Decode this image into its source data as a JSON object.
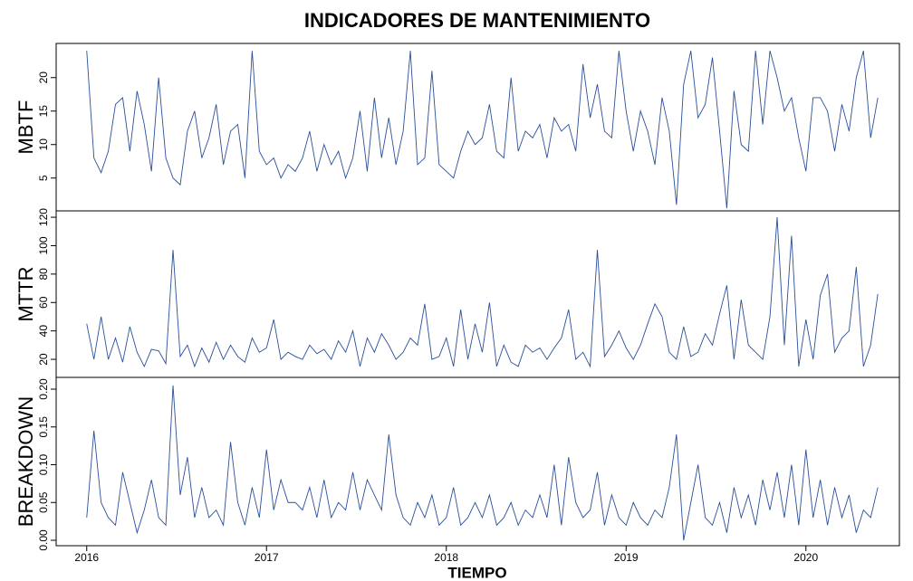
{
  "chart_data": {
    "type": "line",
    "title": "INDICADORES DE MANTENIMIENTO",
    "xlabel": "TIEMPO",
    "color": "#2a4f9a",
    "xlim": [
      2015.83,
      2020.52
    ],
    "xticks": [
      2016,
      2017,
      2018,
      2019,
      2020
    ],
    "x": [
      2016,
      2016.04,
      2016.08,
      2016.12,
      2016.16,
      2016.2,
      2016.24,
      2016.28,
      2016.32,
      2016.36,
      2016.4,
      2016.44,
      2016.48,
      2016.52,
      2016.56,
      2016.6,
      2016.64,
      2016.68,
      2016.72,
      2016.76,
      2016.8,
      2016.84,
      2016.88,
      2016.92,
      2016.96,
      2017,
      2017.04,
      2017.08,
      2017.12,
      2017.16,
      2017.2,
      2017.24,
      2017.28,
      2017.32,
      2017.36,
      2017.4,
      2017.44,
      2017.48,
      2017.52,
      2017.56,
      2017.6,
      2017.64,
      2017.68,
      2017.72,
      2017.76,
      2017.8,
      2017.84,
      2017.88,
      2017.92,
      2017.96,
      2018,
      2018.04,
      2018.08,
      2018.12,
      2018.16,
      2018.2,
      2018.24,
      2018.28,
      2018.32,
      2018.36,
      2018.4,
      2018.44,
      2018.48,
      2018.52,
      2018.56,
      2018.6,
      2018.64,
      2018.68,
      2018.72,
      2018.76,
      2018.8,
      2018.84,
      2018.88,
      2018.92,
      2018.96,
      2019,
      2019.04,
      2019.08,
      2019.12,
      2019.16,
      2019.2,
      2019.24,
      2019.28,
      2019.32,
      2019.36,
      2019.4,
      2019.44,
      2019.48,
      2019.52,
      2019.56,
      2019.6,
      2019.64,
      2019.68,
      2019.72,
      2019.76,
      2019.8,
      2019.84,
      2019.88,
      2019.92,
      2019.96,
      2020,
      2020.04,
      2020.08,
      2020.12,
      2020.16,
      2020.2,
      2020.24,
      2020.28,
      2020.32,
      2020.36,
      2020.4
    ],
    "series": [
      {
        "name": "MBTF",
        "ylim": [
          0.1,
          25.1
        ],
        "yticks": [
          5,
          10,
          15,
          20
        ],
        "values": [
          24,
          8,
          5.8,
          9,
          16,
          17,
          9,
          18,
          13,
          6,
          20,
          8,
          5,
          4,
          12,
          15,
          8,
          11,
          16,
          7,
          12,
          13,
          5,
          24,
          9,
          7,
          8,
          5,
          7,
          6,
          8,
          12,
          6,
          10,
          7,
          9,
          5,
          8,
          15,
          6,
          17,
          8,
          14,
          7,
          12,
          24,
          7,
          8,
          21,
          7,
          6,
          5,
          9,
          12,
          10,
          11,
          16,
          9,
          8,
          20,
          9,
          12,
          11,
          13,
          8,
          14,
          12,
          13,
          9,
          22,
          14,
          19,
          12,
          11,
          24,
          15,
          9,
          15,
          12,
          7,
          17,
          12,
          1,
          19,
          24,
          14,
          16,
          23,
          12,
          0.5,
          18,
          10,
          9,
          24,
          13,
          24,
          20,
          15,
          17,
          11,
          6,
          17,
          17,
          15,
          9,
          16,
          12,
          20,
          24,
          11,
          17
        ]
      },
      {
        "name": "MTTR",
        "ylim": [
          7.3,
          124.5
        ],
        "yticks": [
          20,
          40,
          60,
          80,
          100,
          120
        ],
        "values": [
          45,
          20,
          50,
          20,
          35,
          18,
          43,
          25,
          15,
          27,
          26,
          17,
          97,
          22,
          30,
          15,
          28,
          18,
          32,
          20,
          30,
          22,
          18,
          35,
          25,
          28,
          48,
          20,
          25,
          22,
          20,
          30,
          24,
          27,
          20,
          33,
          25,
          40,
          15,
          35,
          25,
          38,
          30,
          20,
          25,
          35,
          30,
          59,
          20,
          22,
          35,
          15,
          55,
          20,
          45,
          25,
          60,
          15,
          30,
          18,
          15,
          30,
          25,
          28,
          20,
          28,
          35,
          55,
          20,
          25,
          15,
          97,
          22,
          30,
          40,
          28,
          20,
          30,
          45,
          59,
          50,
          25,
          20,
          43,
          22,
          25,
          38,
          30,
          52,
          72,
          20,
          62,
          30,
          25,
          20,
          50,
          120,
          30,
          107,
          15,
          48,
          20,
          65,
          80,
          25,
          35,
          40,
          85,
          15,
          30,
          66
        ]
      },
      {
        "name": "BREAKDOWN",
        "ylim": [
          -0.0072,
          0.2156
        ],
        "yticks": [
          {
            "value": 0,
            "label": "0.00"
          },
          0.05,
          {
            "value": 0.1,
            "label": "0.10"
          },
          0.15,
          {
            "value": 0.2,
            "label": "0.20"
          }
        ],
        "values": [
          0.03,
          0.145,
          0.05,
          0.03,
          0.02,
          0.09,
          0.05,
          0.01,
          0.04,
          0.08,
          0.03,
          0.02,
          0.205,
          0.06,
          0.11,
          0.03,
          0.07,
          0.03,
          0.04,
          0.02,
          0.13,
          0.05,
          0.02,
          0.07,
          0.03,
          0.12,
          0.04,
          0.08,
          0.05,
          0.05,
          0.04,
          0.07,
          0.03,
          0.08,
          0.03,
          0.05,
          0.04,
          0.09,
          0.04,
          0.08,
          0.06,
          0.04,
          0.14,
          0.06,
          0.03,
          0.02,
          0.05,
          0.03,
          0.06,
          0.02,
          0.03,
          0.07,
          0.02,
          0.03,
          0.05,
          0.03,
          0.06,
          0.02,
          0.03,
          0.05,
          0.02,
          0.04,
          0.03,
          0.06,
          0.03,
          0.1,
          0.02,
          0.11,
          0.05,
          0.03,
          0.04,
          0.09,
          0.02,
          0.06,
          0.03,
          0.02,
          0.05,
          0.03,
          0.02,
          0.04,
          0.03,
          0.07,
          0.14,
          0,
          0.05,
          0.1,
          0.03,
          0.02,
          0.05,
          0.01,
          0.07,
          0.03,
          0.06,
          0.02,
          0.08,
          0.04,
          0.09,
          0.03,
          0.1,
          0.02,
          0.12,
          0.03,
          0.08,
          0.02,
          0.07,
          0.03,
          0.06,
          0.01,
          0.04,
          0.03,
          0.07
        ]
      }
    ]
  }
}
